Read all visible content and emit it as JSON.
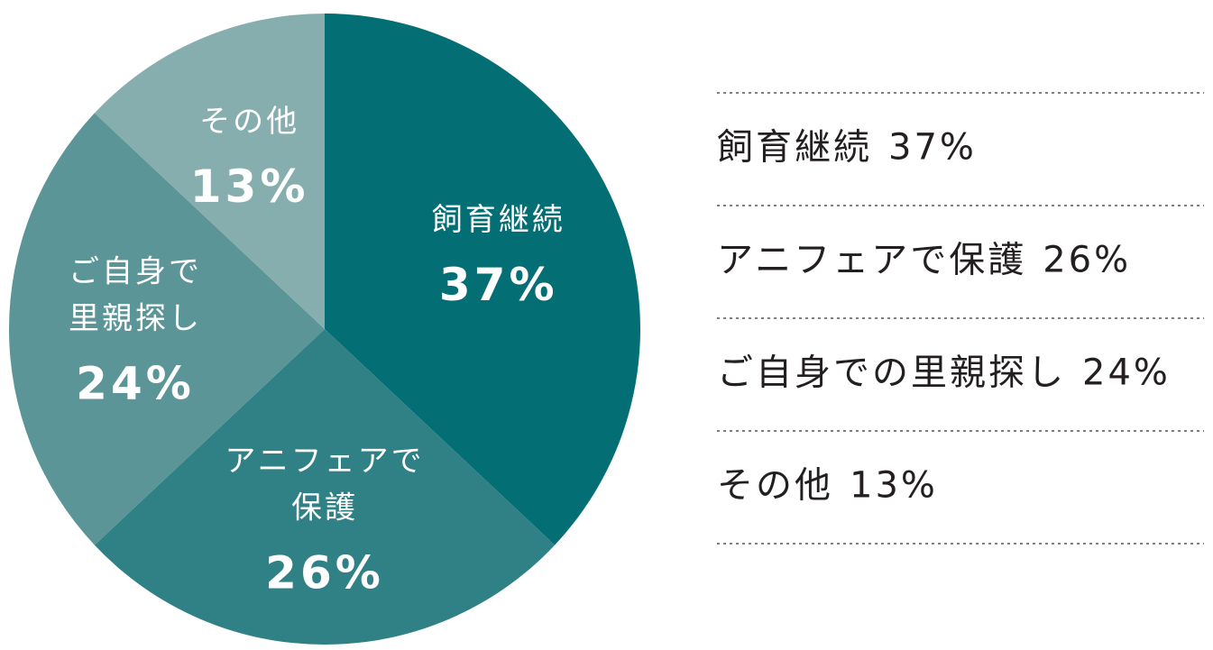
{
  "chart_data": {
    "type": "pie",
    "categories": [
      "飼育継続",
      "アニフェアで保護",
      "ご自身での里親探し",
      "その他"
    ],
    "slice_labels": [
      [
        "飼育継続"
      ],
      [
        "アニフェアで",
        "保護"
      ],
      [
        "ご自身で",
        "里親探し"
      ],
      [
        "その他"
      ]
    ],
    "values": [
      37,
      26,
      24,
      13
    ],
    "value_labels": [
      "37%",
      "26%",
      "24%",
      "13%"
    ],
    "colors": [
      "#036e74",
      "#2f8185",
      "#5b9597",
      "#86aeae"
    ]
  }
}
